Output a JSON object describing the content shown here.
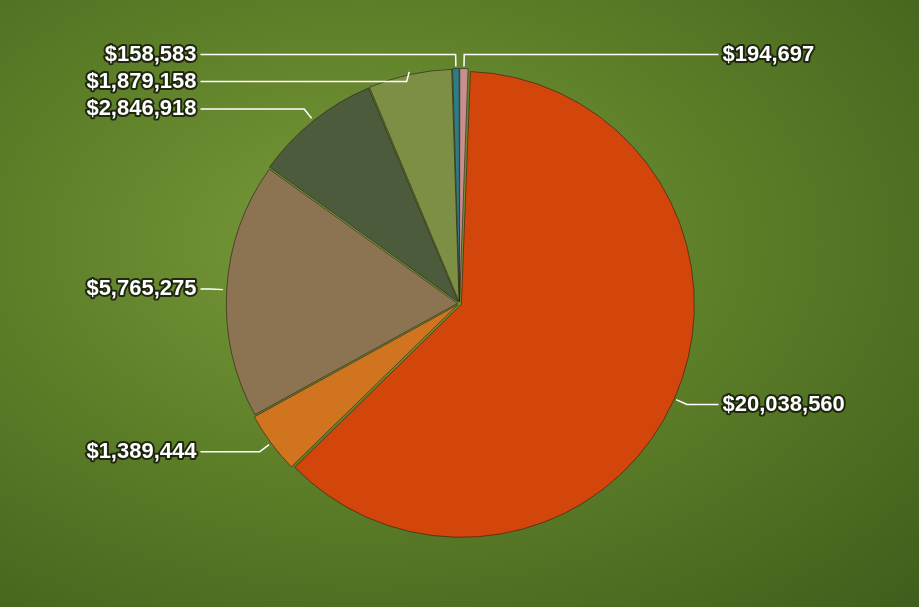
{
  "chart_data": {
    "type": "pie",
    "values": [
      194697,
      20038560,
      1389444,
      5765275,
      2846918,
      1879158,
      158583
    ],
    "value_labels": [
      "$194,697",
      "$20,038,560",
      "$1,389,444",
      "$5,765,275",
      "$2,846,918",
      "$1,879,158",
      "$158,583"
    ],
    "colors": [
      "#c98f8f",
      "#d2460c",
      "#d07420",
      "#8c7452",
      "#4b5b3c",
      "#7d8f44",
      "#2e7d86"
    ],
    "data_labels": true
  }
}
